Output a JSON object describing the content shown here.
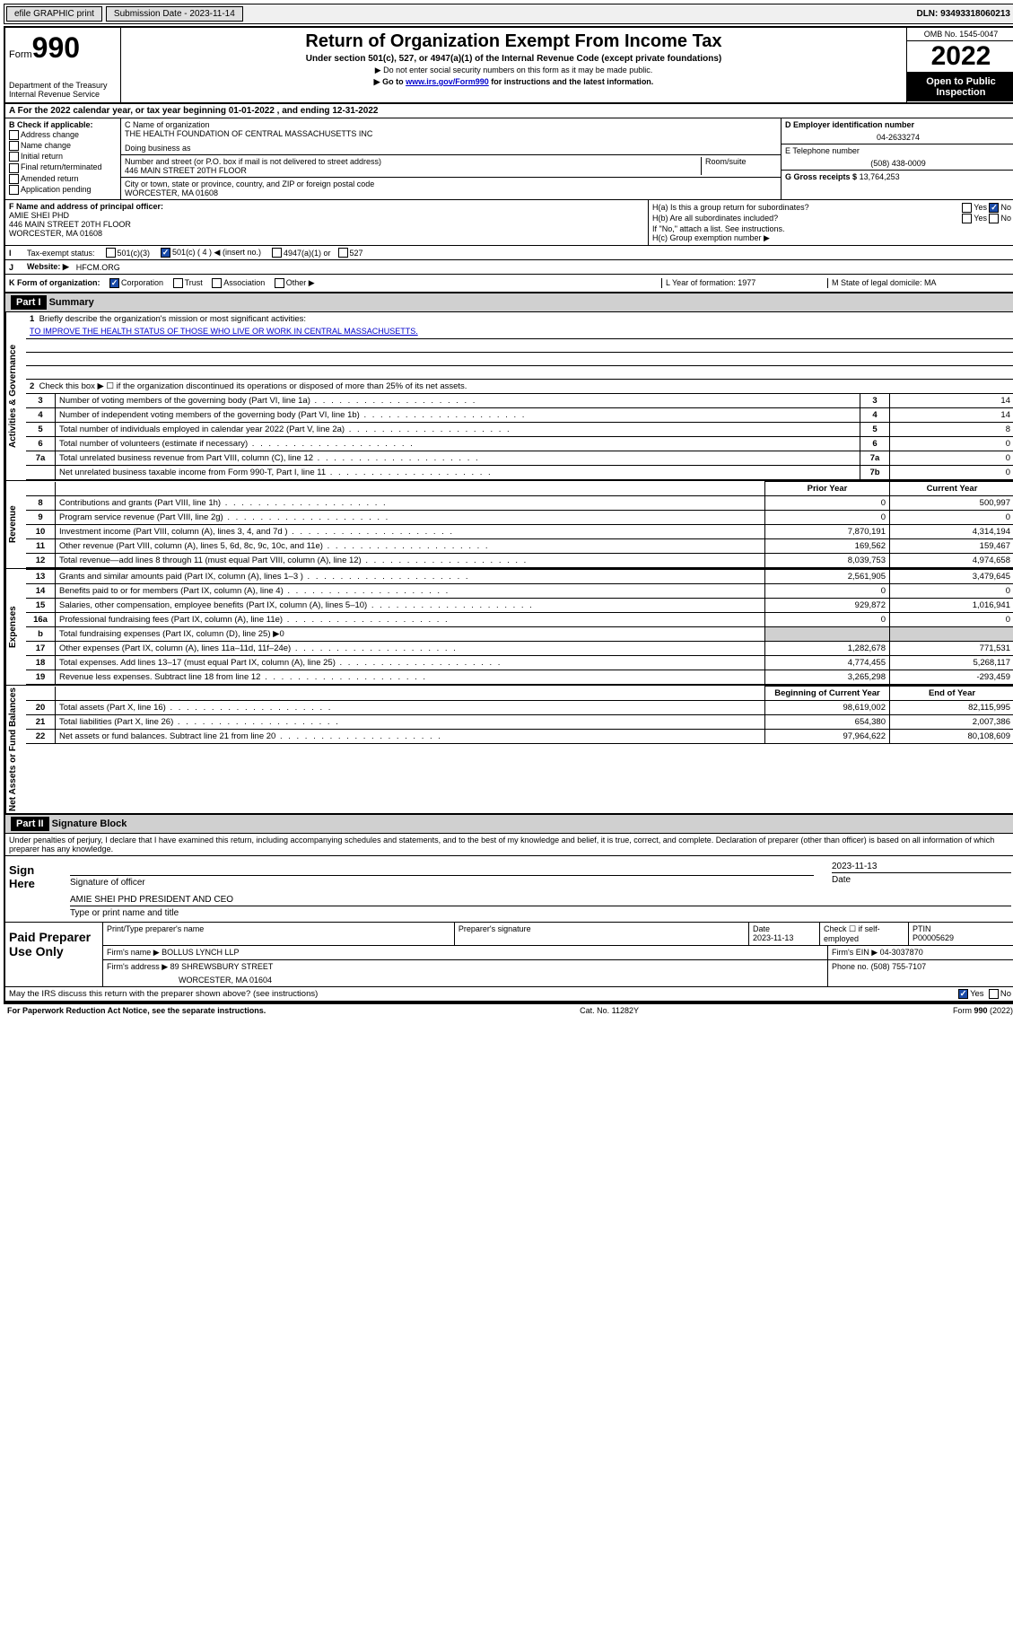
{
  "topbar": {
    "efile": "efile GRAPHIC print",
    "submission_label": "Submission Date - 2023-11-14",
    "dln": "DLN: 93493318060213"
  },
  "header": {
    "form_label": "Form",
    "form_number": "990",
    "dept": "Department of the Treasury",
    "irs": "Internal Revenue Service",
    "title": "Return of Organization Exempt From Income Tax",
    "subtitle": "Under section 501(c), 527, or 4947(a)(1) of the Internal Revenue Code (except private foundations)",
    "note1": "▶ Do not enter social security numbers on this form as it may be made public.",
    "note2_pre": "▶ Go to ",
    "note2_link": "www.irs.gov/Form990",
    "note2_post": " for instructions and the latest information.",
    "omb": "OMB No. 1545-0047",
    "year": "2022",
    "open": "Open to Public Inspection"
  },
  "row_a": "A For the 2022 calendar year, or tax year beginning 01-01-2022   , and ending 12-31-2022",
  "col_b": {
    "header": "B Check if applicable:",
    "items": [
      "Address change",
      "Name change",
      "Initial return",
      "Final return/terminated",
      "Amended return",
      "Application pending"
    ]
  },
  "col_c": {
    "name_label": "C Name of organization",
    "name": "THE HEALTH FOUNDATION OF CENTRAL MASSACHUSETTS INC",
    "dba_label": "Doing business as",
    "addr_label": "Number and street (or P.O. box if mail is not delivered to street address)",
    "room_label": "Room/suite",
    "addr": "446 MAIN STREET 20TH FLOOR",
    "city_label": "City or town, state or province, country, and ZIP or foreign postal code",
    "city": "WORCESTER, MA  01608"
  },
  "col_d": {
    "label": "D Employer identification number",
    "value": "04-2633274"
  },
  "col_e": {
    "label": "E Telephone number",
    "value": "(508) 438-0009"
  },
  "col_g": {
    "label": "G Gross receipts $",
    "value": "13,764,253"
  },
  "col_f": {
    "label": "F Name and address of principal officer:",
    "name": "AMIE SHEI PHD",
    "addr": "446 MAIN STREET 20TH FLOOR",
    "city": "WORCESTER, MA  01608"
  },
  "col_h": {
    "ha": "H(a)  Is this a group return for subordinates?",
    "hb": "H(b)  Are all subordinates included?",
    "hb_note": "If \"No,\" attach a list. See instructions.",
    "hc": "H(c)  Group exemption number ▶",
    "yes": "Yes",
    "no": "No"
  },
  "row_i": {
    "label": "Tax-exempt status:",
    "opt1": "501(c)(3)",
    "opt2": "501(c) ( 4 ) ◀ (insert no.)",
    "opt3": "4947(a)(1) or",
    "opt4": "527"
  },
  "row_j": {
    "label": "Website: ▶",
    "value": "HFCM.ORG"
  },
  "row_k": {
    "label": "K Form of organization:",
    "corp": "Corporation",
    "trust": "Trust",
    "assoc": "Association",
    "other": "Other ▶"
  },
  "row_l": "L Year of formation: 1977",
  "row_m": "M State of legal domicile: MA",
  "part1": {
    "header": "Part I",
    "title": "Summary",
    "q1": "Briefly describe the organization's mission or most significant activities:",
    "mission": "TO IMPROVE THE HEALTH STATUS OF THOSE WHO LIVE OR WORK IN CENTRAL MASSACHUSETTS.",
    "q2": "Check this box ▶ ☐  if the organization discontinued its operations or disposed of more than 25% of its net assets."
  },
  "governance_label": "Activities & Governance",
  "revenue_label": "Revenue",
  "expenses_label": "Expenses",
  "netassets_label": "Net Assets or Fund Balances",
  "lines_gov": [
    {
      "n": "3",
      "d": "Number of voting members of the governing body (Part VI, line 1a)",
      "b": "3",
      "v": "14"
    },
    {
      "n": "4",
      "d": "Number of independent voting members of the governing body (Part VI, line 1b)",
      "b": "4",
      "v": "14"
    },
    {
      "n": "5",
      "d": "Total number of individuals employed in calendar year 2022 (Part V, line 2a)",
      "b": "5",
      "v": "8"
    },
    {
      "n": "6",
      "d": "Total number of volunteers (estimate if necessary)",
      "b": "6",
      "v": "0"
    },
    {
      "n": "7a",
      "d": "Total unrelated business revenue from Part VIII, column (C), line 12",
      "b": "7a",
      "v": "0"
    },
    {
      "n": "",
      "d": "Net unrelated business taxable income from Form 990-T, Part I, line 11",
      "b": "7b",
      "v": "0"
    }
  ],
  "col_headers": {
    "prior": "Prior Year",
    "current": "Current Year"
  },
  "lines_rev": [
    {
      "n": "8",
      "d": "Contributions and grants (Part VIII, line 1h)",
      "p": "0",
      "c": "500,997"
    },
    {
      "n": "9",
      "d": "Program service revenue (Part VIII, line 2g)",
      "p": "0",
      "c": "0"
    },
    {
      "n": "10",
      "d": "Investment income (Part VIII, column (A), lines 3, 4, and 7d )",
      "p": "7,870,191",
      "c": "4,314,194"
    },
    {
      "n": "11",
      "d": "Other revenue (Part VIII, column (A), lines 5, 6d, 8c, 9c, 10c, and 11e)",
      "p": "169,562",
      "c": "159,467"
    },
    {
      "n": "12",
      "d": "Total revenue—add lines 8 through 11 (must equal Part VIII, column (A), line 12)",
      "p": "8,039,753",
      "c": "4,974,658"
    }
  ],
  "lines_exp": [
    {
      "n": "13",
      "d": "Grants and similar amounts paid (Part IX, column (A), lines 1–3 )",
      "p": "2,561,905",
      "c": "3,479,645"
    },
    {
      "n": "14",
      "d": "Benefits paid to or for members (Part IX, column (A), line 4)",
      "p": "0",
      "c": "0"
    },
    {
      "n": "15",
      "d": "Salaries, other compensation, employee benefits (Part IX, column (A), lines 5–10)",
      "p": "929,872",
      "c": "1,016,941"
    },
    {
      "n": "16a",
      "d": "Professional fundraising fees (Part IX, column (A), line 11e)",
      "p": "0",
      "c": "0"
    },
    {
      "n": "b",
      "d": "Total fundraising expenses (Part IX, column (D), line 25) ▶0",
      "p": "",
      "c": "",
      "shaded": true
    },
    {
      "n": "17",
      "d": "Other expenses (Part IX, column (A), lines 11a–11d, 11f–24e)",
      "p": "1,282,678",
      "c": "771,531"
    },
    {
      "n": "18",
      "d": "Total expenses. Add lines 13–17 (must equal Part IX, column (A), line 25)",
      "p": "4,774,455",
      "c": "5,268,117"
    },
    {
      "n": "19",
      "d": "Revenue less expenses. Subtract line 18 from line 12",
      "p": "3,265,298",
      "c": "-293,459"
    }
  ],
  "col_headers2": {
    "begin": "Beginning of Current Year",
    "end": "End of Year"
  },
  "lines_net": [
    {
      "n": "20",
      "d": "Total assets (Part X, line 16)",
      "p": "98,619,002",
      "c": "82,115,995"
    },
    {
      "n": "21",
      "d": "Total liabilities (Part X, line 26)",
      "p": "654,380",
      "c": "2,007,386"
    },
    {
      "n": "22",
      "d": "Net assets or fund balances. Subtract line 21 from line 20",
      "p": "97,964,622",
      "c": "80,108,609"
    }
  ],
  "part2": {
    "header": "Part II",
    "title": "Signature Block",
    "perjury": "Under penalties of perjury, I declare that I have examined this return, including accompanying schedules and statements, and to the best of my knowledge and belief, it is true, correct, and complete. Declaration of preparer (other than officer) is based on all information of which preparer has any knowledge."
  },
  "sign": {
    "label": "Sign Here",
    "sig_label": "Signature of officer",
    "date_label": "Date",
    "date": "2023-11-13",
    "name": "AMIE SHEI PHD  PRESIDENT AND CEO",
    "name_label": "Type or print name and title"
  },
  "preparer": {
    "label": "Paid Preparer Use Only",
    "print_label": "Print/Type preparer's name",
    "sig_label": "Preparer's signature",
    "date_label": "Date",
    "date": "2023-11-13",
    "check_label": "Check ☐ if self-employed",
    "ptin_label": "PTIN",
    "ptin": "P00005629",
    "firm_name_label": "Firm's name    ▶",
    "firm_name": "BOLLUS LYNCH LLP",
    "firm_ein_label": "Firm's EIN ▶",
    "firm_ein": "04-3037870",
    "firm_addr_label": "Firm's address ▶",
    "firm_addr": "89 SHREWSBURY STREET",
    "firm_city": "WORCESTER, MA  01604",
    "phone_label": "Phone no.",
    "phone": "(508) 755-7107"
  },
  "footer": {
    "discuss": "May the IRS discuss this return with the preparer shown above? (see instructions)",
    "yes": "Yes",
    "no": "No",
    "paperwork": "For Paperwork Reduction Act Notice, see the separate instructions.",
    "cat": "Cat. No. 11282Y",
    "form": "Form 990 (2022)"
  }
}
